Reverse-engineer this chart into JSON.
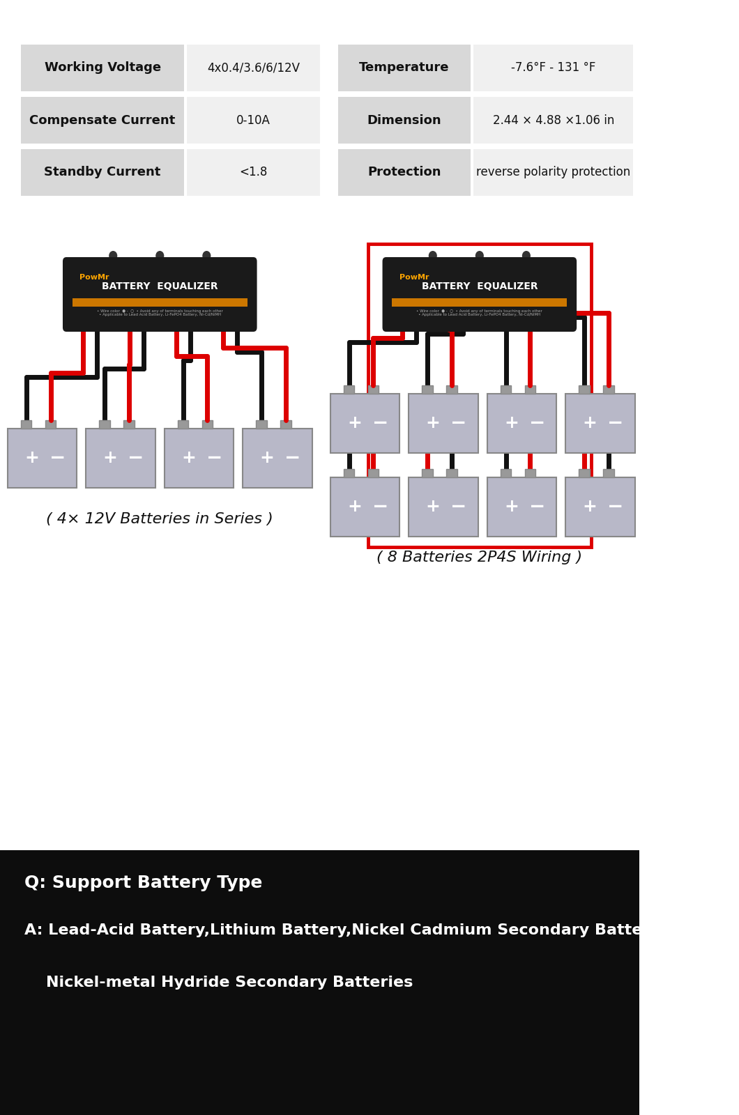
{
  "bg_color": "#ffffff",
  "table_bg_header": "#d8d8d8",
  "table_bg_value": "#f0f0f0",
  "table_rows": [
    [
      "Working Voltage",
      "4x0.4/3.6/6/12V",
      "Temperature",
      "-7.6°F - 131 °F"
    ],
    [
      "Compensate Current",
      "0-10A",
      "Dimension",
      "2.44 × 4.88 ×1.06 in"
    ],
    [
      "Standby Current",
      "<1.8",
      "Protection",
      "reverse polarity protection"
    ]
  ],
  "label1": "( 4× 12V Batteries in Series )",
  "label2": "( 8 Batteries 2P4S Wiring )",
  "q_text": "Q: Support Battery Type",
  "a_text": "A: Lead-Acid Battery,Lithium Battery,Nickel Cadmium Secondary Batteries",
  "a_text2": "    Nickel-metal Hydride Secondary Batteries",
  "bottom_bg": "#0d0d0d",
  "bottom_text_color": "#ffffff",
  "wire_red": "#dd0000",
  "wire_black": "#111111",
  "device_bg": "#1a1a1a",
  "device_orange": "#FFA500",
  "battery_fill": "#b8b8c8",
  "battery_edge": "#888888",
  "terminal_fill": "#999999"
}
